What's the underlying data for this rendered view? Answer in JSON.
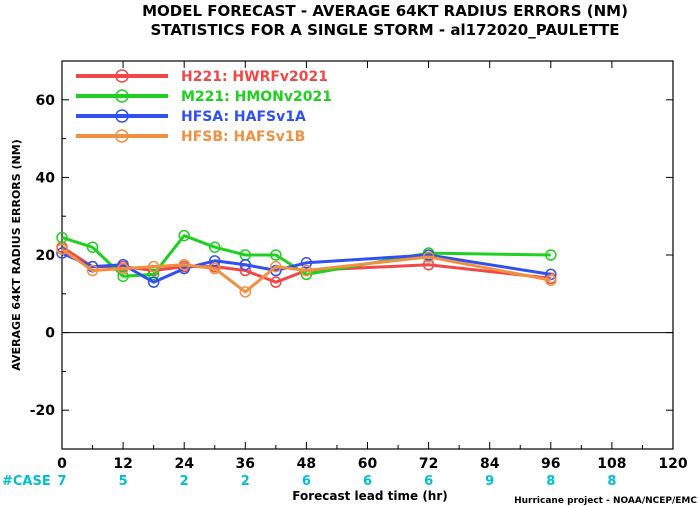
{
  "chart_data": {
    "type": "line",
    "title": "MODEL FORECAST - AVERAGE 64KT RADIUS ERRORS (NM)",
    "subtitle": "STATISTICS FOR A SINGLE STORM - al172020_PAULETTE",
    "xlabel": "Forecast lead time (hr)",
    "ylabel": "AVERAGE 64KT RADIUS ERRORS (NM)",
    "xlim": [
      0,
      120
    ],
    "ylim": [
      -30,
      70
    ],
    "xticks": [
      "0",
      "12",
      "24",
      "36",
      "48",
      "60",
      "72",
      "84",
      "96",
      "108",
      "120"
    ],
    "yticks": [
      "60",
      "40",
      "20",
      "0",
      "-20"
    ],
    "zero_line": true,
    "legend_position": "top-left",
    "series": [
      {
        "name": "H221: HWRFv2021",
        "color": "#f04848",
        "x": [
          0,
          6,
          12,
          18,
          24,
          30,
          36,
          42,
          48,
          72,
          96
        ],
        "y": [
          22,
          17,
          17,
          16,
          17,
          17,
          16,
          13,
          16,
          17.5,
          14
        ]
      },
      {
        "name": "M221: HMONv2021",
        "color": "#20d020",
        "x": [
          0,
          6,
          12,
          18,
          24,
          30,
          36,
          42,
          48,
          72,
          96
        ],
        "y": [
          24.5,
          22,
          14.5,
          15,
          25,
          22,
          20,
          20,
          15,
          20.5,
          20
        ]
      },
      {
        "name": "HFSA: HAFSv1A",
        "color": "#3050f0",
        "x": [
          0,
          6,
          12,
          18,
          24,
          30,
          36,
          42,
          48,
          72,
          96
        ],
        "y": [
          20.5,
          17,
          17.5,
          13,
          16.5,
          18.5,
          17.5,
          16,
          18,
          20,
          15
        ]
      },
      {
        "name": "HFSB: HAFSv1B",
        "color": "#f09040",
        "x": [
          0,
          6,
          12,
          18,
          24,
          30,
          36,
          42,
          48,
          72,
          96
        ],
        "y": [
          21.5,
          16,
          16.5,
          17,
          17.5,
          16.5,
          10.5,
          17,
          16,
          19.5,
          13.5
        ]
      }
    ],
    "cases": {
      "label": "#CASE",
      "x": [
        0,
        12,
        24,
        36,
        48,
        60,
        72,
        84,
        96
      ],
      "values": [
        "7",
        "5",
        "2",
        "2",
        "6",
        "6",
        "6",
        "9",
        "8",
        "8"
      ],
      "x_full": [
        0,
        12,
        24,
        36,
        48,
        60,
        72,
        84,
        96,
        108
      ]
    }
  },
  "credit": "Hurricane project - NOAA/NCEP/EMC",
  "colors": {
    "case_label": "#00c0d0",
    "case_values": "#00c0d0",
    "zero_line": "#000000"
  }
}
